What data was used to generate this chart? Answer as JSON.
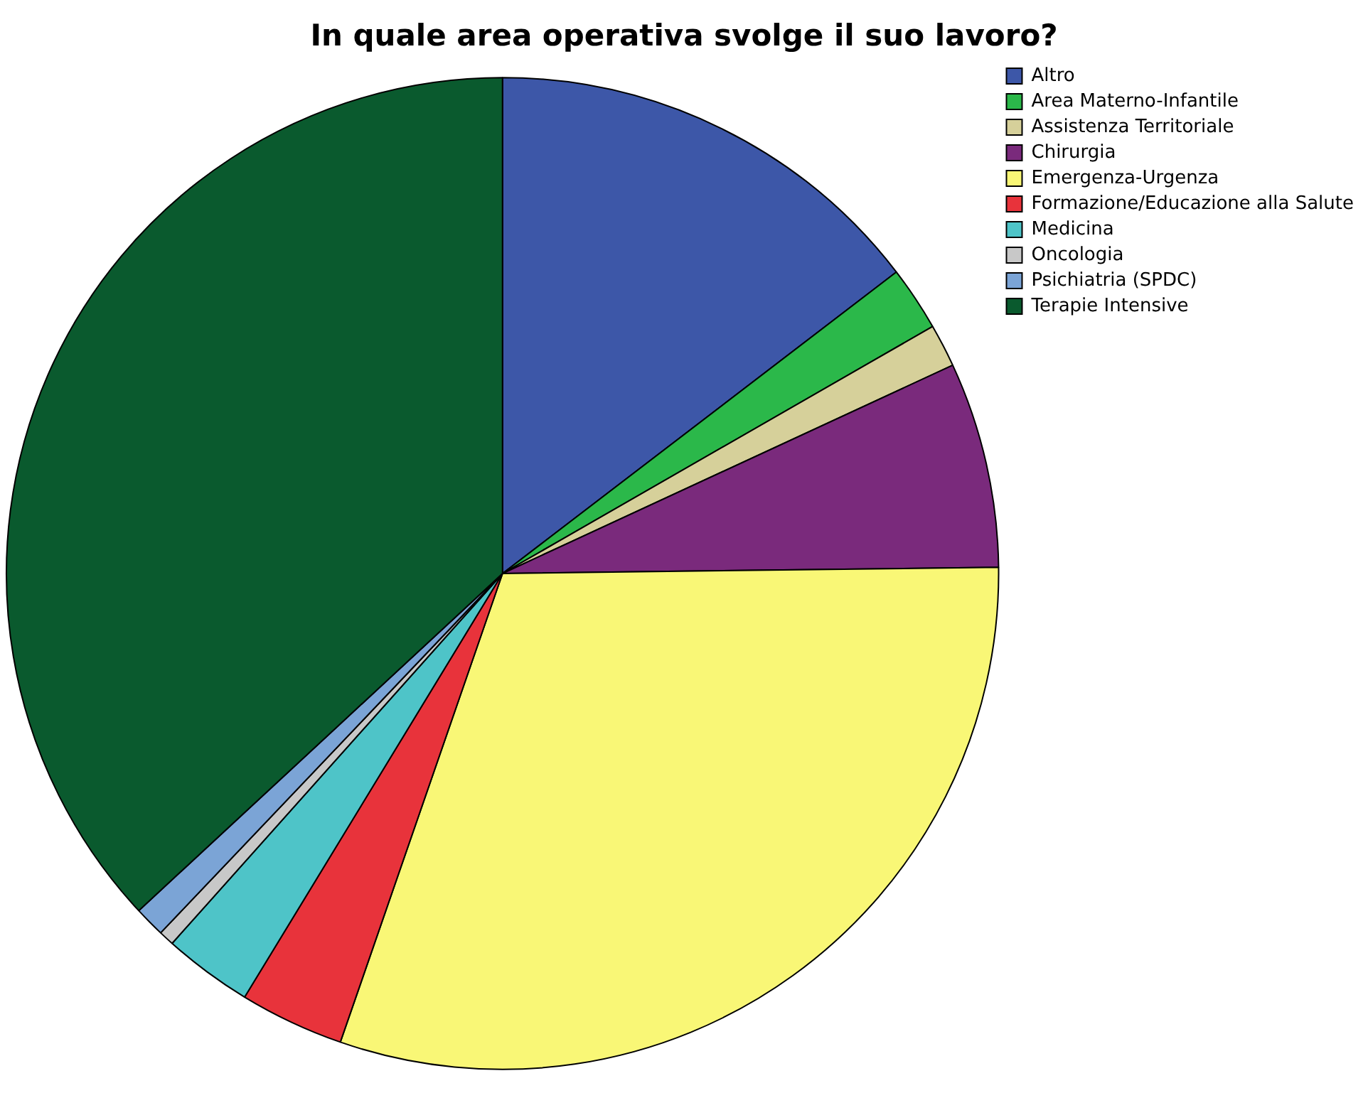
{
  "chart_data": {
    "type": "pie",
    "title": "In quale area operativa svolge il suo lavoro?",
    "categories": [
      "Altro",
      "Area Materno-Infantile",
      "Assistenza Territoriale",
      "Chirurgia",
      "Emergenza-Urgenza",
      "Formazione/Educazione alla Salute",
      "Medicina",
      "Oncologia",
      "Psichiatria (SPDC)",
      "Terapie Intensive"
    ],
    "values": [
      14.6,
      2.1,
      1.4,
      6.7,
      30.5,
      3.4,
      2.9,
      0.5,
      1.0,
      36.9
    ],
    "colors": [
      "#3d57a8",
      "#2bb84a",
      "#d6d09a",
      "#7a2a7c",
      "#f9f776",
      "#e8333b",
      "#4ec4c8",
      "#c8c8c8",
      "#7ba4d6",
      "#0a5a2e"
    ],
    "legend": "top right"
  }
}
